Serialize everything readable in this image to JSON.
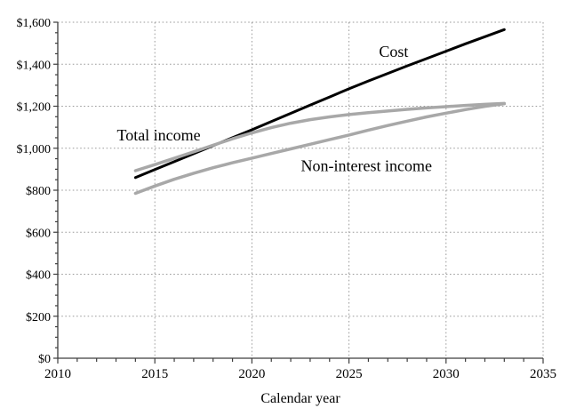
{
  "page": {
    "background": "#ffffff"
  },
  "chart_data": {
    "type": "line",
    "title": "",
    "xlabel": "Calendar year",
    "ylabel": "",
    "xlim": [
      2010,
      2035
    ],
    "ylim": [
      0,
      1600
    ],
    "x_major_ticks": [
      2010,
      2015,
      2020,
      2025,
      2030,
      2035
    ],
    "x_major_tick_labels": [
      "2010",
      "2015",
      "2020",
      "2025",
      "2030",
      "2035"
    ],
    "x_minor_tick_step": 1,
    "y_major_ticks": [
      0,
      200,
      400,
      600,
      800,
      1000,
      1200,
      1400,
      1600
    ],
    "y_major_tick_labels": [
      "$0",
      "$200",
      "$400",
      "$600",
      "$800",
      "$1,000",
      "$1,200",
      "$1,400",
      "$1,600"
    ],
    "y_minor_tick_step": 50,
    "grid": {
      "style": "dotted",
      "color": "#9b9b9b"
    },
    "axis_color": "#3d3d3d",
    "legend": "none",
    "x": [
      2014,
      2015,
      2016,
      2017,
      2018,
      2019,
      2020,
      2021,
      2022,
      2023,
      2024,
      2025,
      2026,
      2027,
      2028,
      2029,
      2030,
      2031,
      2032,
      2033
    ],
    "series": [
      {
        "name": "Cost",
        "color": "#000000",
        "width": 3,
        "values": [
          860,
          898,
          936,
          974,
          1012,
          1050,
          1088,
          1127,
          1166,
          1205,
          1244,
          1283,
          1320,
          1356,
          1392,
          1427,
          1462,
          1497,
          1531,
          1565
        ]
      },
      {
        "name": "Total income",
        "color": "#a8a8a8",
        "width": 3.5,
        "values": [
          893,
          922,
          952,
          983,
          1014,
          1045,
          1073,
          1098,
          1119,
          1136,
          1149,
          1160,
          1169,
          1177,
          1185,
          1192,
          1198,
          1204,
          1209,
          1213
        ]
      },
      {
        "name": "Non-interest income",
        "color": "#a8a8a8",
        "width": 3.5,
        "values": [
          785,
          820,
          852,
          881,
          907,
          931,
          953,
          975,
          997,
          1019,
          1041,
          1063,
          1086,
          1108,
          1129,
          1149,
          1167,
          1184,
          1199,
          1212
        ]
      }
    ],
    "annotations": [
      {
        "text": "Total income",
        "year": 2015.2,
        "value": 1062
      },
      {
        "text": "Cost",
        "year": 2027.3,
        "value": 1460
      },
      {
        "text": "Non-interest income",
        "year": 2025.9,
        "value": 916
      }
    ]
  }
}
